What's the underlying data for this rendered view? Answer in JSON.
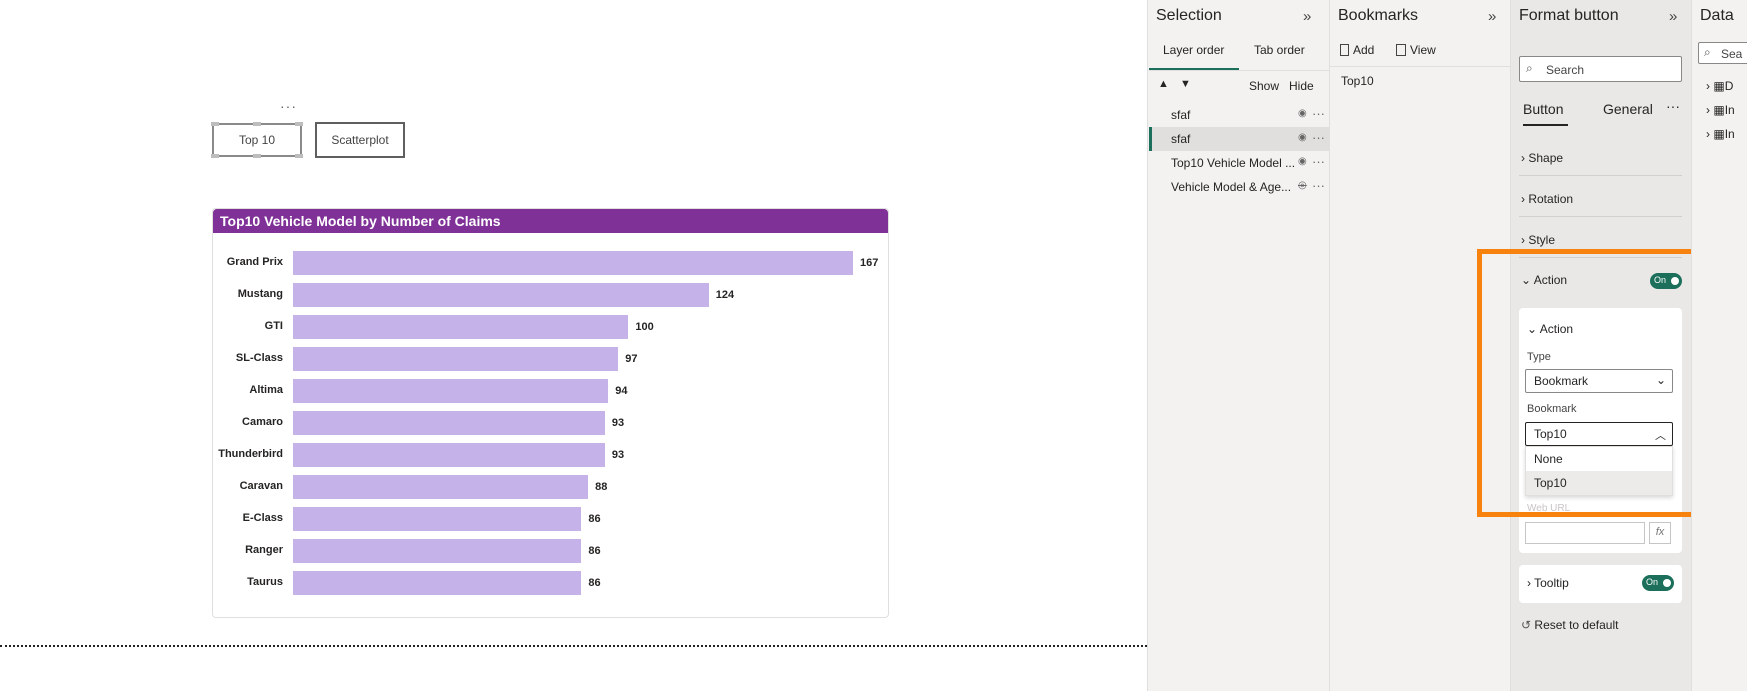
{
  "canvas": {
    "more_dots": "···",
    "buttons": [
      {
        "label": "Top 10"
      },
      {
        "label": "Scatterplot"
      }
    ]
  },
  "chart": {
    "title": "Top10 Vehicle Model by Number of Claims"
  },
  "chart_data": {
    "type": "bar",
    "orientation": "horizontal",
    "title": "Top10 Vehicle Model by Number of Claims",
    "categories": [
      "Grand Prix",
      "Mustang",
      "GTI",
      "SL-Class",
      "Altima",
      "Camaro",
      "Thunderbird",
      "Caravan",
      "E-Class",
      "Ranger",
      "Taurus"
    ],
    "values": [
      167,
      124,
      100,
      97,
      94,
      93,
      93,
      88,
      86,
      86,
      86
    ],
    "xlim": [
      0,
      167
    ],
    "bar_color": "#c5b2e8",
    "data_labels": true,
    "grid": false
  },
  "selection_pane": {
    "title": "Selection",
    "tabs": [
      "Layer order",
      "Tab order"
    ],
    "show_label": "Show",
    "hide_label": "Hide",
    "layers": [
      {
        "label": "sfaf",
        "visible": true,
        "selected": false
      },
      {
        "label": "sfaf",
        "visible": true,
        "selected": true
      },
      {
        "label": "Top10 Vehicle Model ...",
        "visible": true,
        "selected": false
      },
      {
        "label": "Vehicle Model & Age...",
        "visible": false,
        "selected": false
      }
    ]
  },
  "bookmarks_pane": {
    "title": "Bookmarks",
    "add_label": "Add",
    "view_label": "View",
    "items": [
      {
        "label": "Top10"
      }
    ]
  },
  "format_pane": {
    "title": "Format button",
    "search_placeholder": "Search",
    "tabs": [
      "Button",
      "General"
    ],
    "more": "···",
    "sections": {
      "shape": "Shape",
      "rotation": "Rotation",
      "style": "Style",
      "action": "Action",
      "tooltip": "Tooltip"
    },
    "action_toggle": "On",
    "tooltip_toggle": "On",
    "action_card": {
      "header": "Action",
      "type_label": "Type",
      "type_value": "Bookmark",
      "bookmark_label": "Bookmark",
      "bookmark_value": "Top10",
      "options": [
        "None",
        "Top10"
      ],
      "hidden_label": "Web URL",
      "fx": "fx"
    },
    "reset_label": "Reset to default",
    "highlight_color": "#f7820d"
  },
  "data_pane": {
    "title": "Data",
    "search_placeholder": "Sea",
    "items": [
      "D",
      "In",
      "In"
    ]
  },
  "colors": {
    "chart_title_bg": "#7f3198",
    "toggle_on": "#1b6f5b",
    "panel_bg": "#f3f2f1",
    "selection_accent": "#1b6f5b"
  }
}
